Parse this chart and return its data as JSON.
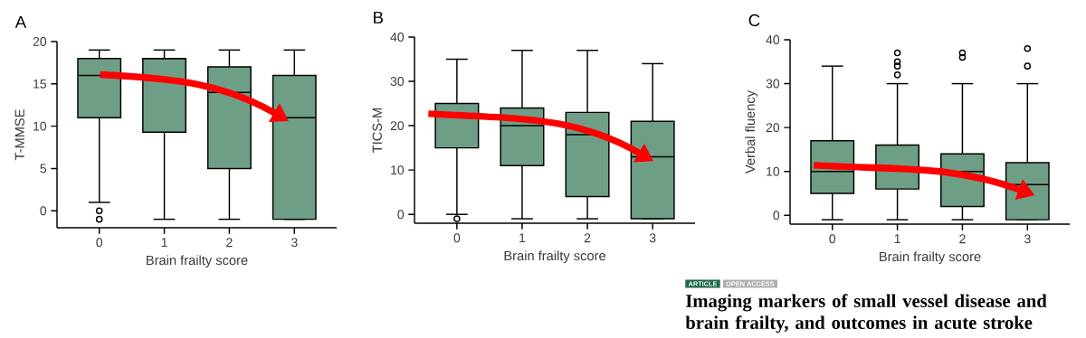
{
  "chart_data": [
    {
      "type": "box",
      "title": "A",
      "xlabel": "Brain frailty score",
      "ylabel": "T-MMSE",
      "categories": [
        "0",
        "1",
        "2",
        "3"
      ],
      "color": "#6e9f86",
      "ylim": [
        -2,
        20
      ],
      "yticks": [
        0,
        5,
        10,
        15,
        20
      ],
      "boxes": [
        {
          "low": 1,
          "q1": 11,
          "median": 16,
          "q3": 18,
          "high": 19,
          "outliers": [
            0,
            -1
          ]
        },
        {
          "low": -1,
          "q1": 9.3,
          "median": 18,
          "q3": 18,
          "high": 19
        },
        {
          "low": -1,
          "q1": 5,
          "median": 14,
          "q3": 17,
          "high": 19
        },
        {
          "low": -1,
          "q1": -1,
          "median": 11,
          "q3": 16,
          "high": 19
        }
      ]
    },
    {
      "type": "box",
      "title": "B",
      "xlabel": "Brain frailty score",
      "ylabel": "TICS-M",
      "categories": [
        "0",
        "1",
        "2",
        "3"
      ],
      "color": "#6e9f86",
      "ylim": [
        -2,
        40
      ],
      "yticks": [
        0,
        10,
        20,
        30,
        40
      ],
      "boxes": [
        {
          "low": 0,
          "q1": 15,
          "median": 22,
          "q3": 25,
          "high": 35,
          "outliers": [
            -1
          ]
        },
        {
          "low": -1,
          "q1": 11,
          "median": 20,
          "q3": 24,
          "high": 37
        },
        {
          "low": -1,
          "q1": 4,
          "median": 18,
          "q3": 23,
          "high": 37
        },
        {
          "low": -1,
          "q1": -1,
          "median": 13,
          "q3": 21,
          "high": 34
        }
      ]
    },
    {
      "type": "box",
      "title": "C",
      "xlabel": "Brain frailty score",
      "ylabel": "Verbal fluency",
      "categories": [
        "0",
        "1",
        "2",
        "3"
      ],
      "color": "#6e9f86",
      "ylim": [
        -2,
        40
      ],
      "yticks": [
        0,
        10,
        20,
        30,
        40
      ],
      "boxes": [
        {
          "low": -1,
          "q1": 5,
          "median": 10,
          "q3": 17,
          "high": 34
        },
        {
          "low": -1,
          "q1": 6,
          "median": 11,
          "q3": 16,
          "high": 30,
          "outliers": [
            32,
            34,
            35,
            37
          ]
        },
        {
          "low": -1,
          "q1": 2,
          "median": 10,
          "q3": 14,
          "high": 30,
          "outliers": [
            36,
            37
          ]
        },
        {
          "low": -1,
          "q1": -1,
          "median": 7,
          "q3": 12,
          "high": 30,
          "outliers": [
            34,
            38
          ]
        }
      ],
      "annotations": [
        "ARTICLE",
        "OPEN ACCESS",
        "Imaging markers of small vessel disease and brain frailty, and outcomes in acute stroke"
      ]
    }
  ]
}
